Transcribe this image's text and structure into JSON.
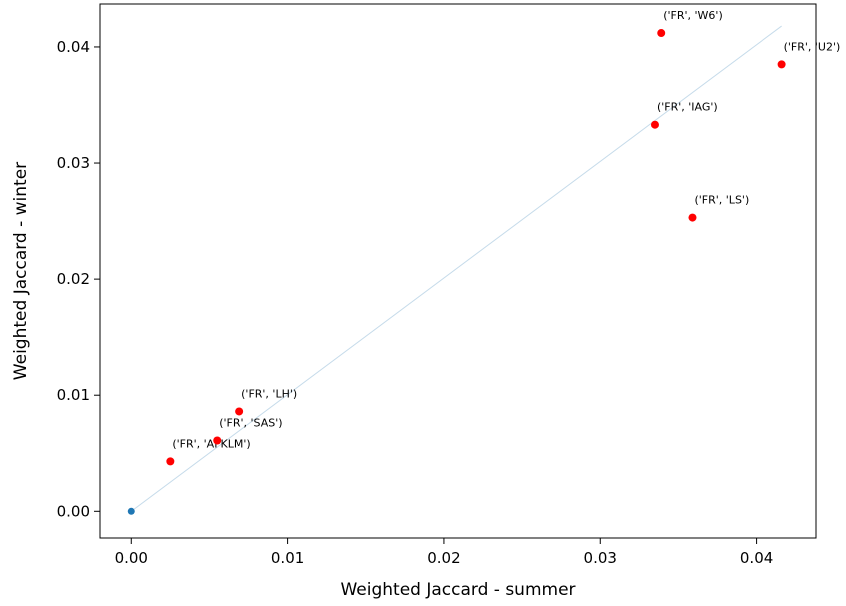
{
  "chart_data": {
    "type": "scatter",
    "xlabel": "Weighted Jaccard - summer",
    "ylabel": "Weighted Jaccard - winter",
    "xlim": [
      -0.002,
      0.0438
    ],
    "ylim": [
      -0.0023,
      0.0437
    ],
    "xticks": [
      0.0,
      0.01,
      0.02,
      0.03,
      0.04
    ],
    "xtick_labels": [
      "0.00",
      "0.01",
      "0.02",
      "0.03",
      "0.04"
    ],
    "yticks": [
      0.0,
      0.01,
      0.02,
      0.03,
      0.04
    ],
    "ytick_labels": [
      "0.00",
      "0.01",
      "0.02",
      "0.03",
      "0.04"
    ],
    "grid": false,
    "diagonal": {
      "from": [
        0.0,
        0.0
      ],
      "to": [
        0.0416,
        0.0418
      ],
      "color": "#c6dbea"
    },
    "origin_point": {
      "x": 0.0,
      "y": 0.0,
      "color": "#1f77b4"
    },
    "point_color": "#ff0000",
    "points": [
      {
        "x": 0.0025,
        "y": 0.0043,
        "label": "('FR', 'AFKLM')"
      },
      {
        "x": 0.0055,
        "y": 0.0061,
        "label": "('FR', 'SAS')"
      },
      {
        "x": 0.0069,
        "y": 0.0086,
        "label": "('FR', 'LH')"
      },
      {
        "x": 0.0335,
        "y": 0.0333,
        "label": "('FR', 'IAG')"
      },
      {
        "x": 0.0339,
        "y": 0.0412,
        "label": "('FR', 'W6')"
      },
      {
        "x": 0.0359,
        "y": 0.0253,
        "label": "('FR', 'LS')"
      },
      {
        "x": 0.0416,
        "y": 0.0385,
        "label": "('FR', 'U2')"
      }
    ]
  }
}
